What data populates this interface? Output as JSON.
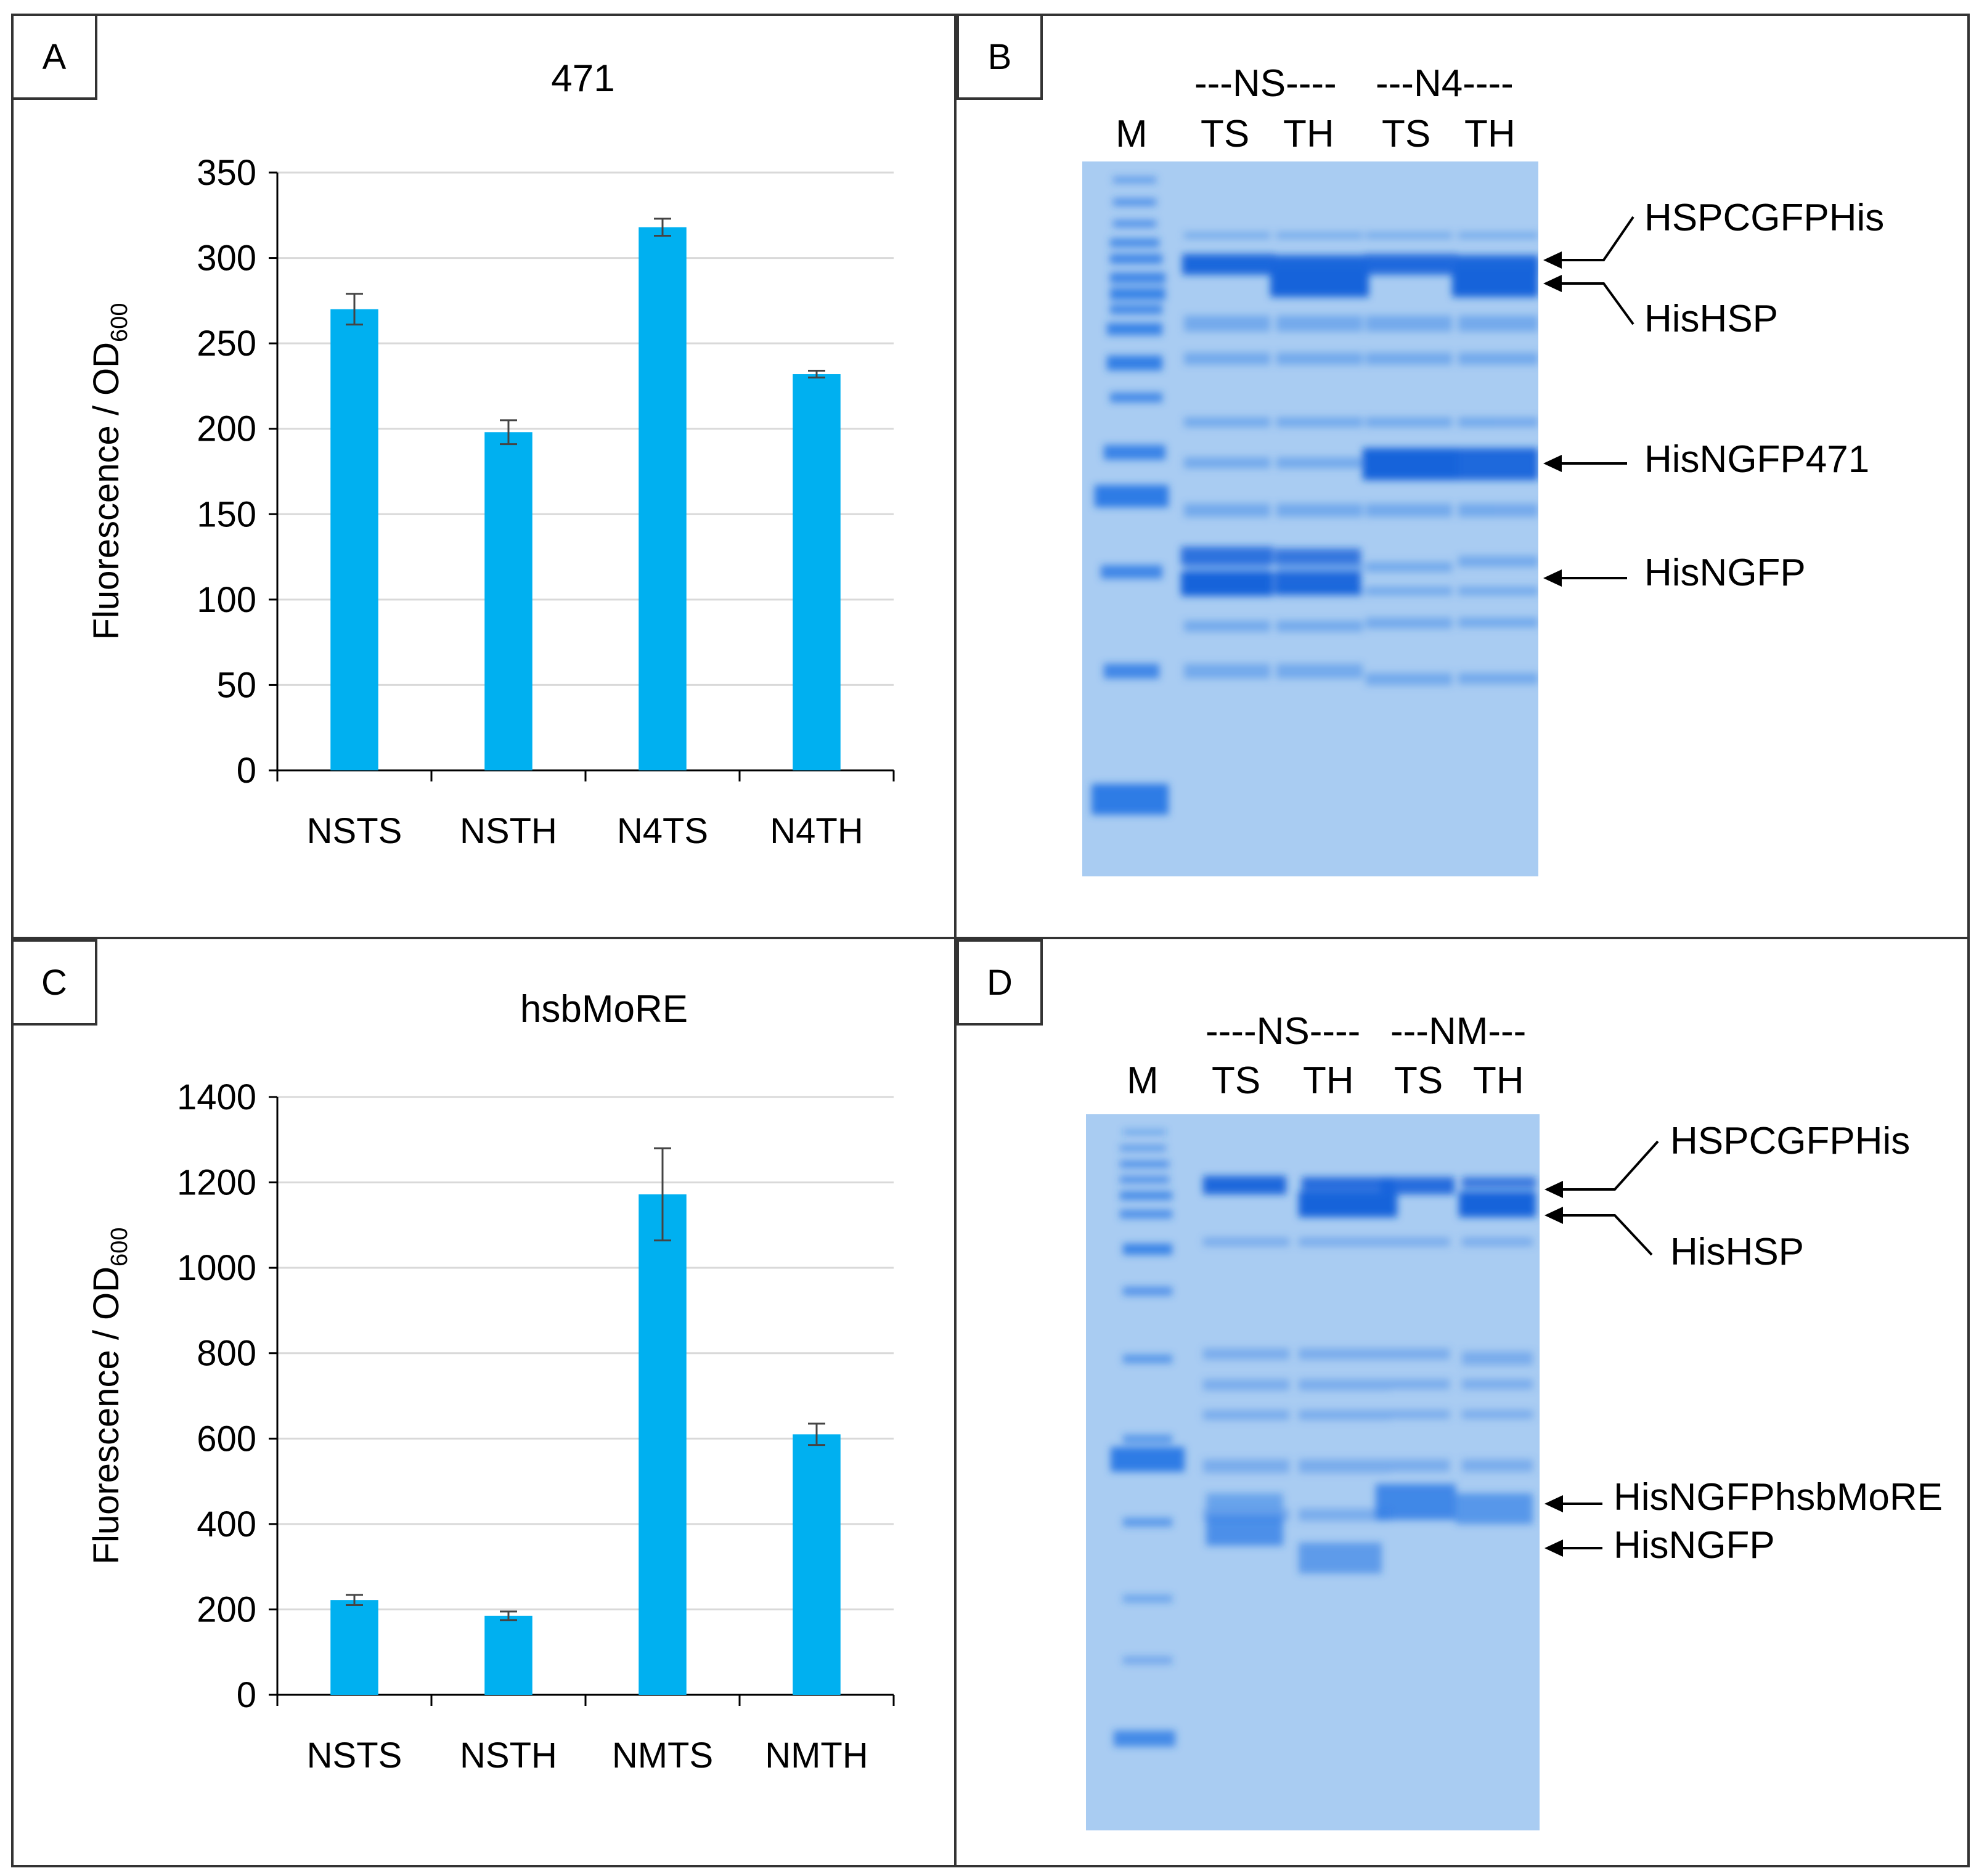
{
  "panels": {
    "A": {
      "label": "A"
    },
    "B": {
      "label": "B"
    },
    "C": {
      "label": "C"
    },
    "D": {
      "label": "D"
    }
  },
  "chart_data": [
    {
      "panel": "A",
      "type": "bar",
      "title": "471",
      "ylabel_main": "Fluorescence / OD",
      "ylabel_sub": "600",
      "xlabel": "",
      "categories": [
        "NSTS",
        "NSTH",
        "N4TS",
        "N4TH"
      ],
      "values": [
        270,
        198,
        318,
        232
      ],
      "errors": [
        9,
        7,
        5,
        2
      ],
      "ylim": [
        0,
        350
      ],
      "yticks": [
        "0",
        "50",
        "100",
        "150",
        "200",
        "250",
        "300",
        "350"
      ],
      "grid": true,
      "bar_color": "#00B0F0"
    },
    {
      "panel": "C",
      "type": "bar",
      "title": "hsbMoRE",
      "ylabel_main": "Fluorescence / OD",
      "ylabel_sub": "600",
      "xlabel": "",
      "categories": [
        "NSTS",
        "NSTH",
        "NMTS",
        "NMTH"
      ],
      "values": [
        222,
        185,
        1172,
        610
      ],
      "errors": [
        12,
        10,
        108,
        25
      ],
      "ylim": [
        0,
        1400
      ],
      "yticks": [
        "0",
        "200",
        "400",
        "600",
        "800",
        "1000",
        "1200",
        "1400"
      ],
      "grid": true,
      "bar_color": "#00B0F0"
    }
  ],
  "gels": {
    "B": {
      "group_left": "---NS----",
      "group_right": "---N4----",
      "lane_M": "M",
      "lanes": [
        "TS",
        "TH",
        "TS",
        "TH"
      ],
      "annotations": [
        "HSPCGFPHis",
        "HisHSP",
        "HisNGFP471",
        "HisNGFP"
      ]
    },
    "D": {
      "group_left": "----NS----",
      "group_right": "---NM---",
      "lane_M": "M",
      "lanes": [
        "TS",
        "TH",
        "TS",
        "TH"
      ],
      "annotations": [
        "HSPCGFPHis",
        "HisHSP",
        "HisNGFPhsbMoRE",
        "HisNGFP"
      ]
    }
  },
  "colors": {
    "bar": "#00B0F0",
    "gel_bg": "#A9CCF2",
    "band": "#1F6FE0",
    "frame": "#333333"
  }
}
